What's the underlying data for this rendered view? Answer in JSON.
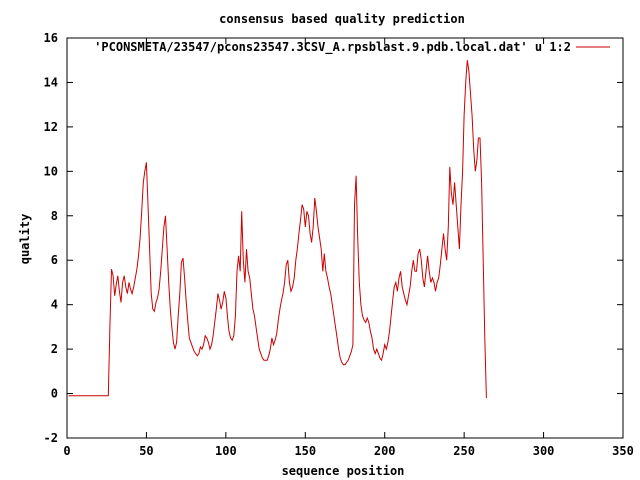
{
  "chart_data": {
    "type": "line",
    "title": "consensus based quality prediction",
    "xlabel": "sequence position",
    "ylabel": "quality",
    "xlim": [
      0,
      350
    ],
    "ylim": [
      -2,
      16
    ],
    "xticks": [
      0,
      50,
      100,
      150,
      200,
      250,
      300,
      350
    ],
    "yticks": [
      -2,
      0,
      2,
      4,
      6,
      8,
      10,
      12,
      14,
      16
    ],
    "legend_position": "top-right",
    "grid": false,
    "series": [
      {
        "name": "'PCONSMETA/23547/pcons23547.3CSV_A.rpsblast.9.pdb.local.dat' u 1:2",
        "color": "#cc0000",
        "points": [
          [
            1,
            -0.1
          ],
          [
            26,
            -0.1
          ],
          [
            27,
            3.0
          ],
          [
            28,
            5.6
          ],
          [
            29,
            5.3
          ],
          [
            30,
            4.4
          ],
          [
            31,
            4.9
          ],
          [
            32,
            5.3
          ],
          [
            33,
            4.6
          ],
          [
            34,
            4.1
          ],
          [
            35,
            5.0
          ],
          [
            36,
            5.3
          ],
          [
            37,
            4.8
          ],
          [
            38,
            4.5
          ],
          [
            39,
            5.0
          ],
          [
            40,
            4.7
          ],
          [
            41,
            4.5
          ],
          [
            42,
            4.8
          ],
          [
            43,
            5.2
          ],
          [
            44,
            5.6
          ],
          [
            45,
            6.2
          ],
          [
            46,
            7.0
          ],
          [
            47,
            8.2
          ],
          [
            48,
            9.5
          ],
          [
            49,
            10.0
          ],
          [
            50,
            10.4
          ],
          [
            51,
            8.5
          ],
          [
            52,
            6.5
          ],
          [
            53,
            4.5
          ],
          [
            54,
            3.8
          ],
          [
            55,
            3.7
          ],
          [
            56,
            4.1
          ],
          [
            57,
            4.3
          ],
          [
            58,
            4.7
          ],
          [
            59,
            5.5
          ],
          [
            60,
            6.5
          ],
          [
            61,
            7.5
          ],
          [
            62,
            8.0
          ],
          [
            63,
            6.5
          ],
          [
            64,
            5.0
          ],
          [
            65,
            3.8
          ],
          [
            66,
            3.0
          ],
          [
            67,
            2.3
          ],
          [
            68,
            2.0
          ],
          [
            69,
            2.3
          ],
          [
            70,
            3.5
          ],
          [
            71,
            4.5
          ],
          [
            72,
            5.9
          ],
          [
            73,
            6.1
          ],
          [
            74,
            5.2
          ],
          [
            75,
            4.2
          ],
          [
            76,
            3.3
          ],
          [
            77,
            2.5
          ],
          [
            78,
            2.3
          ],
          [
            79,
            2.1
          ],
          [
            80,
            1.9
          ],
          [
            81,
            1.8
          ],
          [
            82,
            1.7
          ],
          [
            83,
            1.8
          ],
          [
            84,
            2.1
          ],
          [
            85,
            2.0
          ],
          [
            86,
            2.2
          ],
          [
            87,
            2.6
          ],
          [
            88,
            2.5
          ],
          [
            89,
            2.3
          ],
          [
            90,
            2.0
          ],
          [
            91,
            2.2
          ],
          [
            92,
            2.6
          ],
          [
            93,
            3.2
          ],
          [
            94,
            3.8
          ],
          [
            95,
            4.5
          ],
          [
            96,
            4.2
          ],
          [
            97,
            3.8
          ],
          [
            98,
            4.1
          ],
          [
            99,
            4.6
          ],
          [
            100,
            4.3
          ],
          [
            101,
            3.5
          ],
          [
            102,
            2.8
          ],
          [
            103,
            2.5
          ],
          [
            104,
            2.4
          ],
          [
            105,
            2.6
          ],
          [
            106,
            3.5
          ],
          [
            107,
            5.5
          ],
          [
            108,
            6.2
          ],
          [
            109,
            5.5
          ],
          [
            110,
            8.2
          ],
          [
            111,
            6.0
          ],
          [
            112,
            5.0
          ],
          [
            113,
            6.5
          ],
          [
            114,
            5.5
          ],
          [
            115,
            5.2
          ],
          [
            116,
            4.5
          ],
          [
            117,
            3.8
          ],
          [
            118,
            3.5
          ],
          [
            119,
            3.0
          ],
          [
            120,
            2.5
          ],
          [
            121,
            2.0
          ],
          [
            122,
            1.8
          ],
          [
            123,
            1.6
          ],
          [
            124,
            1.5
          ],
          [
            125,
            1.5
          ],
          [
            126,
            1.5
          ],
          [
            127,
            1.7
          ],
          [
            128,
            2.0
          ],
          [
            129,
            2.5
          ],
          [
            130,
            2.2
          ],
          [
            131,
            2.4
          ],
          [
            132,
            2.7
          ],
          [
            133,
            3.3
          ],
          [
            134,
            3.8
          ],
          [
            135,
            4.2
          ],
          [
            136,
            4.5
          ],
          [
            137,
            5.0
          ],
          [
            138,
            5.8
          ],
          [
            139,
            6.0
          ],
          [
            140,
            5.0
          ],
          [
            141,
            4.6
          ],
          [
            142,
            4.8
          ],
          [
            143,
            5.2
          ],
          [
            144,
            6.0
          ],
          [
            145,
            6.5
          ],
          [
            146,
            7.2
          ],
          [
            147,
            7.8
          ],
          [
            148,
            8.5
          ],
          [
            149,
            8.3
          ],
          [
            150,
            7.5
          ],
          [
            151,
            8.2
          ],
          [
            152,
            8.0
          ],
          [
            153,
            7.2
          ],
          [
            154,
            6.8
          ],
          [
            155,
            7.5
          ],
          [
            156,
            8.8
          ],
          [
            157,
            8.2
          ],
          [
            158,
            7.5
          ],
          [
            159,
            7.0
          ],
          [
            160,
            6.5
          ],
          [
            161,
            5.5
          ],
          [
            162,
            6.3
          ],
          [
            163,
            5.5
          ],
          [
            164,
            5.2
          ],
          [
            165,
            4.8
          ],
          [
            166,
            4.5
          ],
          [
            167,
            4.0
          ],
          [
            168,
            3.5
          ],
          [
            169,
            3.0
          ],
          [
            170,
            2.5
          ],
          [
            171,
            2.0
          ],
          [
            172,
            1.6
          ],
          [
            173,
            1.4
          ],
          [
            174,
            1.3
          ],
          [
            175,
            1.3
          ],
          [
            176,
            1.4
          ],
          [
            177,
            1.5
          ],
          [
            178,
            1.7
          ],
          [
            179,
            1.9
          ],
          [
            180,
            2.2
          ],
          [
            181,
            8.5
          ],
          [
            182,
            9.8
          ],
          [
            183,
            7.0
          ],
          [
            184,
            5.0
          ],
          [
            185,
            4.0
          ],
          [
            186,
            3.5
          ],
          [
            187,
            3.3
          ],
          [
            188,
            3.2
          ],
          [
            189,
            3.4
          ],
          [
            190,
            3.2
          ],
          [
            191,
            2.8
          ],
          [
            192,
            2.5
          ],
          [
            193,
            2.0
          ],
          [
            194,
            1.8
          ],
          [
            195,
            2.0
          ],
          [
            196,
            1.8
          ],
          [
            197,
            1.6
          ],
          [
            198,
            1.5
          ],
          [
            199,
            1.8
          ],
          [
            200,
            2.2
          ],
          [
            201,
            2.0
          ],
          [
            202,
            2.3
          ],
          [
            203,
            2.8
          ],
          [
            204,
            3.5
          ],
          [
            205,
            4.2
          ],
          [
            206,
            4.8
          ],
          [
            207,
            5.0
          ],
          [
            208,
            4.6
          ],
          [
            209,
            5.2
          ],
          [
            210,
            5.5
          ],
          [
            211,
            4.8
          ],
          [
            212,
            4.5
          ],
          [
            213,
            4.2
          ],
          [
            214,
            4.0
          ],
          [
            215,
            4.4
          ],
          [
            216,
            4.8
          ],
          [
            217,
            5.5
          ],
          [
            218,
            6.0
          ],
          [
            219,
            5.5
          ],
          [
            220,
            5.5
          ],
          [
            221,
            6.3
          ],
          [
            222,
            6.5
          ],
          [
            223,
            6.0
          ],
          [
            224,
            5.2
          ],
          [
            225,
            4.8
          ],
          [
            226,
            5.5
          ],
          [
            227,
            6.2
          ],
          [
            228,
            5.5
          ],
          [
            229,
            5.0
          ],
          [
            230,
            5.2
          ],
          [
            231,
            5.0
          ],
          [
            232,
            4.6
          ],
          [
            233,
            5.0
          ],
          [
            234,
            5.2
          ],
          [
            235,
            5.8
          ],
          [
            236,
            6.5
          ],
          [
            237,
            7.2
          ],
          [
            238,
            6.5
          ],
          [
            239,
            6.0
          ],
          [
            240,
            7.5
          ],
          [
            241,
            10.2
          ],
          [
            242,
            9.0
          ],
          [
            243,
            8.5
          ],
          [
            244,
            9.5
          ],
          [
            245,
            8.5
          ],
          [
            246,
            7.5
          ],
          [
            247,
            6.5
          ],
          [
            248,
            8.5
          ],
          [
            249,
            10.0
          ],
          [
            250,
            12.5
          ],
          [
            251,
            14.0
          ],
          [
            252,
            15.0
          ],
          [
            253,
            14.5
          ],
          [
            254,
            13.5
          ],
          [
            255,
            12.5
          ],
          [
            256,
            11.0
          ],
          [
            257,
            10.0
          ],
          [
            258,
            10.5
          ],
          [
            259,
            11.5
          ],
          [
            260,
            11.5
          ],
          [
            261,
            9.5
          ],
          [
            262,
            6.0
          ],
          [
            263,
            2.5
          ],
          [
            264,
            -0.2
          ]
        ]
      }
    ]
  }
}
